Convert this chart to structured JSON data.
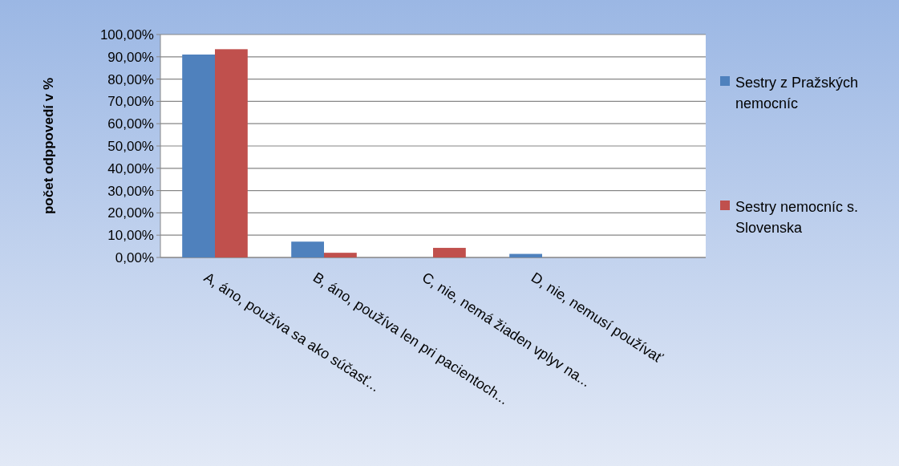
{
  "chart_data": {
    "type": "bar",
    "ylabel": "počet odppovedí v %",
    "categories": [
      "A, áno, používa sa  ako súčasť...",
      "B,  áno, používa len pri pacientoch...",
      "C, nie, nemá žiaden vplyv na...",
      "D,  nie, nemusí používať",
      null
    ],
    "series": [
      {
        "name": "Sestry z Pražských nemocníc",
        "color": "#4f81bd",
        "values": [
          91.0,
          7.1,
          0,
          1.6,
          null
        ]
      },
      {
        "name": "Sestry nemocníc s. Slovenska",
        "color": "#c0504d",
        "values": [
          93.4,
          2.1,
          4.3,
          0,
          null
        ]
      }
    ],
    "ylim": [
      0,
      100
    ],
    "yticks": [
      {
        "value": 0,
        "label": "0,00%"
      },
      {
        "value": 10,
        "label": "10,00%"
      },
      {
        "value": 20,
        "label": "20,00%"
      },
      {
        "value": 30,
        "label": "30,00%"
      },
      {
        "value": 40,
        "label": "40,00%"
      },
      {
        "value": 50,
        "label": "50,00%"
      },
      {
        "value": 60,
        "label": "60,00%"
      },
      {
        "value": 70,
        "label": "70,00%"
      },
      {
        "value": 80,
        "label": "80,00%"
      },
      {
        "value": 90,
        "label": "90,00%"
      },
      {
        "value": 100,
        "label": "100,00%"
      }
    ],
    "grid": "y",
    "legend": "right"
  }
}
